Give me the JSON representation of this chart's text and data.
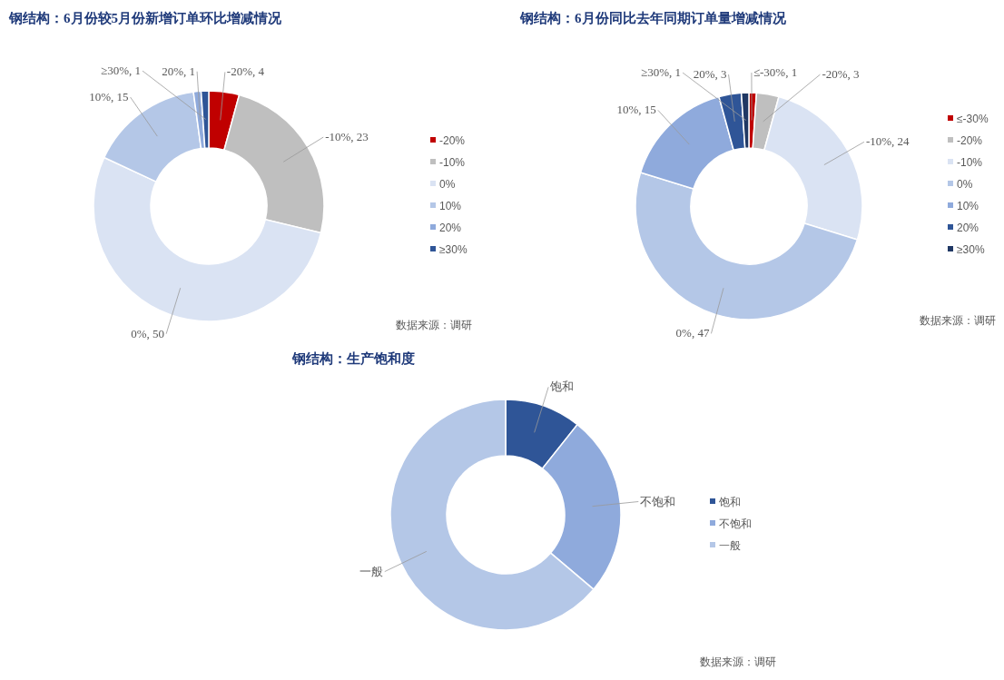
{
  "chart_data": [
    {
      "type": "donut",
      "title": "钢结构：6月份较5月份新增订单环比增减情况",
      "categories": [
        "-20%",
        "-10%",
        "0%",
        "10%",
        "20%",
        "≥30%"
      ],
      "values": [
        4,
        23,
        50,
        15,
        1,
        1
      ],
      "colors": [
        "#c00000",
        "#bfbfbf",
        "#dae3f3",
        "#b4c7e7",
        "#8faadc",
        "#2f5597"
      ],
      "value_labels": [
        "-20%, 4",
        "-10%, 23",
        "0%, 50",
        "10%, 15",
        "20%, 1",
        "≥30%, 1"
      ],
      "legend": "right",
      "annotations": [
        "数据来源：调研"
      ]
    },
    {
      "type": "donut",
      "title": "钢结构：6月份同比去年同期订单量增减情况",
      "categories": [
        "≤-30%",
        "-20%",
        "-10%",
        "0%",
        "10%",
        "20%",
        "≥30%"
      ],
      "values": [
        1,
        3,
        24,
        47,
        15,
        3,
        1
      ],
      "colors": [
        "#c00000",
        "#bfbfbf",
        "#dae3f3",
        "#b4c7e7",
        "#8faadc",
        "#2f5597",
        "#203864"
      ],
      "value_labels": [
        "≤-30%, 1",
        "-20%, 3",
        "-10%, 24",
        "0%, 47",
        "10%, 15",
        "20%, 3",
        "≥30%, 1"
      ],
      "legend": "right",
      "annotations": [
        "数据来源：调研"
      ]
    },
    {
      "type": "donut",
      "title": "钢结构：生产饱和度",
      "categories": [
        "饱和",
        "不饱和",
        "一般"
      ],
      "values": [
        10.7,
        25.5,
        63.8
      ],
      "colors": [
        "#2f5597",
        "#8faadc",
        "#b4c7e7"
      ],
      "value_labels": [
        "饱和",
        "不饱和",
        "一般"
      ],
      "legend": "right",
      "annotations": [
        "数据来源：调研"
      ]
    }
  ]
}
